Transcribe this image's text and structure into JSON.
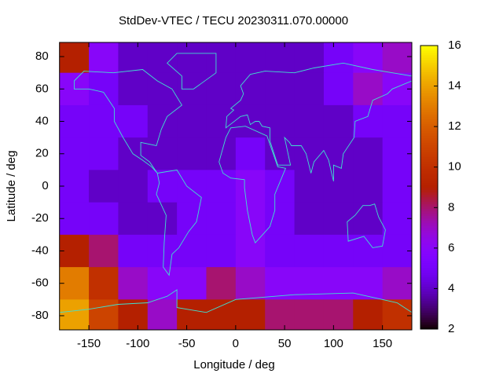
{
  "chart_data": {
    "type": "heatmap",
    "title": "StdDev-VTEC / TECU 20230311.070.00000",
    "xlabel": "Longitude / deg",
    "ylabel": "Latitude / deg",
    "xlim": [
      -180,
      180
    ],
    "ylim": [
      -88.75,
      88.75
    ],
    "xticks": [
      -150,
      -100,
      -50,
      0,
      50,
      100,
      150
    ],
    "yticks": [
      -80,
      -60,
      -40,
      -20,
      0,
      20,
      40,
      60,
      80
    ],
    "cblim": [
      2,
      16
    ],
    "cbticks": [
      2,
      4,
      6,
      8,
      10,
      12,
      14,
      16
    ],
    "palette": "rgbformulae 7,5,15",
    "coastline_color": "#40e0d0",
    "x": [
      -165,
      -135,
      -105,
      -75,
      -45,
      -15,
      15,
      45,
      75,
      105,
      135,
      165
    ],
    "y": [
      80,
      60,
      40,
      20,
      0,
      -20,
      -40,
      -60,
      -80
    ],
    "z": [
      [
        9,
        6,
        4,
        4,
        4,
        4,
        4,
        4,
        4,
        5,
        6,
        7
      ],
      [
        6,
        5,
        4,
        4,
        4,
        4,
        4,
        4,
        4,
        5,
        7,
        6
      ],
      [
        5,
        5,
        5,
        4,
        4,
        4,
        4,
        4,
        4,
        4,
        5,
        5
      ],
      [
        5,
        5,
        4,
        4,
        4,
        4,
        5,
        4,
        4,
        4,
        4,
        5
      ],
      [
        5,
        4,
        4,
        5,
        5,
        5,
        6,
        5,
        4,
        4,
        4,
        5
      ],
      [
        5,
        5,
        4,
        4,
        5,
        5,
        6,
        5,
        4,
        4,
        4,
        5
      ],
      [
        9,
        8,
        5,
        5,
        5,
        5,
        6,
        5,
        5,
        5,
        5,
        5
      ],
      [
        13,
        10,
        7,
        6,
        6,
        8,
        7,
        6,
        6,
        6,
        6,
        7
      ],
      [
        14,
        11,
        9,
        7,
        9,
        9,
        9,
        8,
        8,
        8,
        9,
        10
      ]
    ]
  }
}
